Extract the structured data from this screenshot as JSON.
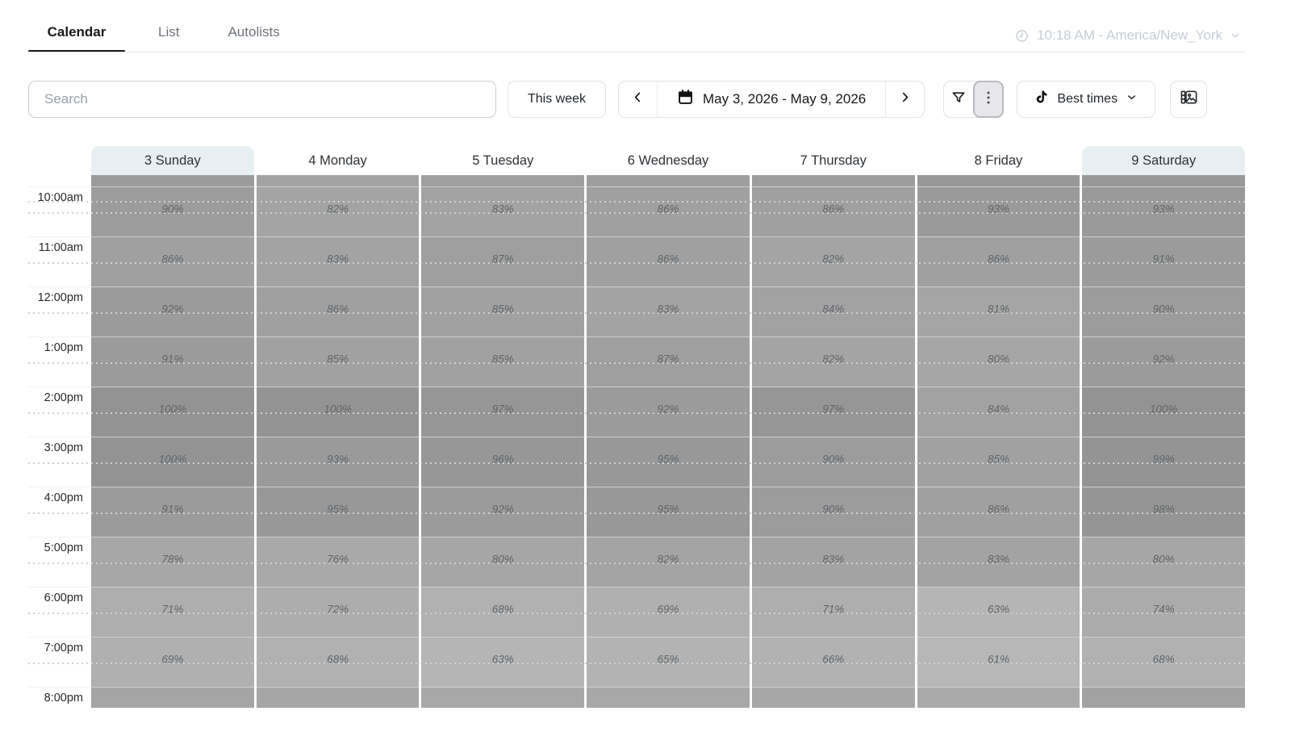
{
  "header": {
    "tabs": [
      {
        "label": "Calendar",
        "active": true
      },
      {
        "label": "List",
        "active": false
      },
      {
        "label": "Autolists",
        "active": false
      }
    ],
    "timezone_label": "10:18 AM - America/New_York"
  },
  "toolbar": {
    "search": {
      "placeholder": "Search",
      "value": ""
    },
    "this_week_label": "This week",
    "date_nav": {
      "range_label": "May 3, 2026 - May 9, 2026"
    },
    "best_times_label": "Best times",
    "icons": [
      "funnel-icon",
      "kebab-menu-icon",
      "tiktok-icon",
      "chevron-left-icon",
      "chevron-right-icon",
      "calendar-icon",
      "media-library-icon",
      "clock-icon",
      "chevron-down-icon"
    ]
  },
  "calendar": {
    "day_headers": [
      "3 Sunday",
      "4 Monday",
      "5 Tuesday",
      "6 Wednesday",
      "7 Thursday",
      "8 Friday",
      "9 Saturday"
    ],
    "highlighted_day_indexes": [
      0,
      6
    ],
    "value_suffix": "%",
    "chart_data": {
      "type": "heatmap",
      "x_categories": [
        "3 Sunday",
        "4 Monday",
        "5 Tuesday",
        "6 Wednesday",
        "7 Thursday",
        "8 Friday",
        "9 Saturday"
      ],
      "y_categories": [
        "10:00am",
        "11:00am",
        "12:00pm",
        "1:00pm",
        "2:00pm",
        "3:00pm",
        "4:00pm",
        "5:00pm",
        "6:00pm",
        "7:00pm"
      ],
      "values": [
        [
          90,
          82,
          83,
          86,
          86,
          93,
          93
        ],
        [
          86,
          83,
          87,
          86,
          82,
          86,
          91
        ],
        [
          92,
          86,
          85,
          83,
          84,
          81,
          90
        ],
        [
          91,
          85,
          85,
          87,
          82,
          80,
          92
        ],
        [
          100,
          100,
          97,
          92,
          97,
          84,
          100
        ],
        [
          100,
          93,
          96,
          95,
          90,
          85,
          99
        ],
        [
          91,
          95,
          92,
          95,
          90,
          86,
          98
        ],
        [
          78,
          76,
          80,
          82,
          83,
          83,
          80
        ],
        [
          71,
          72,
          68,
          69,
          71,
          63,
          74
        ],
        [
          69,
          68,
          63,
          65,
          66,
          61,
          68
        ]
      ]
    },
    "partial_top_row_colors": [
      "#9b9b9b",
      "#a3a3a3",
      "#9f9f9f",
      "#9e9e9e",
      "#9d9d9d",
      "#989898",
      "#989898"
    ],
    "partial_bottom_row": {
      "time": "8:00pm",
      "colors": [
        "#a5a5a5",
        "#a6a6a6",
        "#a8a8a8",
        "#a8a8a8",
        "#a7a7a7",
        "#aaaaaa",
        "#a2a2a2"
      ]
    }
  },
  "colors": {
    "active_tab_underline": "#1a1a1a",
    "weekend_header_bg": "#e8eff2",
    "timezone_text": "#c7cdd6",
    "heatmap_gray_min": "#b7b7b7",
    "heatmap_gray_max": "#939393"
  }
}
